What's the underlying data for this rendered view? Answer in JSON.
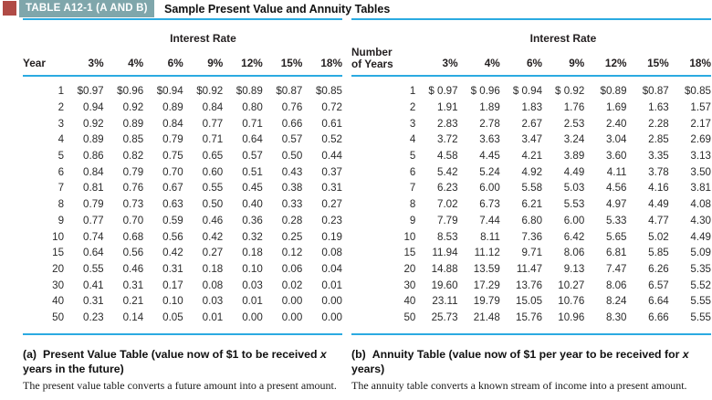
{
  "header": {
    "tag": "TABLE A12-1 (A AND B)",
    "title": "Sample Present Value and Annuity Tables"
  },
  "colors": {
    "rule_blue": "#2baae1",
    "tag_teal": "#7fa6ab",
    "accent_red": "#b04b46"
  },
  "tables": {
    "present_value": {
      "group_header": "Interest Rate",
      "row_header": "Year",
      "columns": [
        "3%",
        "4%",
        "6%",
        "9%",
        "12%",
        "15%",
        "18%"
      ],
      "rows": [
        {
          "label": "1",
          "values": [
            "$0.97",
            "$0.96",
            "$0.94",
            "$0.92",
            "$0.89",
            "$0.87",
            "$0.85"
          ]
        },
        {
          "label": "2",
          "values": [
            "0.94",
            "0.92",
            "0.89",
            "0.84",
            "0.80",
            "0.76",
            "0.72"
          ]
        },
        {
          "label": "3",
          "values": [
            "0.92",
            "0.89",
            "0.84",
            "0.77",
            "0.71",
            "0.66",
            "0.61"
          ]
        },
        {
          "label": "4",
          "values": [
            "0.89",
            "0.85",
            "0.79",
            "0.71",
            "0.64",
            "0.57",
            "0.52"
          ]
        },
        {
          "label": "5",
          "values": [
            "0.86",
            "0.82",
            "0.75",
            "0.65",
            "0.57",
            "0.50",
            "0.44"
          ]
        },
        {
          "label": "6",
          "values": [
            "0.84",
            "0.79",
            "0.70",
            "0.60",
            "0.51",
            "0.43",
            "0.37"
          ]
        },
        {
          "label": "7",
          "values": [
            "0.81",
            "0.76",
            "0.67",
            "0.55",
            "0.45",
            "0.38",
            "0.31"
          ]
        },
        {
          "label": "8",
          "values": [
            "0.79",
            "0.73",
            "0.63",
            "0.50",
            "0.40",
            "0.33",
            "0.27"
          ]
        },
        {
          "label": "9",
          "values": [
            "0.77",
            "0.70",
            "0.59",
            "0.46",
            "0.36",
            "0.28",
            "0.23"
          ]
        },
        {
          "label": "10",
          "values": [
            "0.74",
            "0.68",
            "0.56",
            "0.42",
            "0.32",
            "0.25",
            "0.19"
          ]
        },
        {
          "label": "15",
          "values": [
            "0.64",
            "0.56",
            "0.42",
            "0.27",
            "0.18",
            "0.12",
            "0.08"
          ]
        },
        {
          "label": "20",
          "values": [
            "0.55",
            "0.46",
            "0.31",
            "0.18",
            "0.10",
            "0.06",
            "0.04"
          ]
        },
        {
          "label": "30",
          "values": [
            "0.41",
            "0.31",
            "0.17",
            "0.08",
            "0.03",
            "0.02",
            "0.01"
          ]
        },
        {
          "label": "40",
          "values": [
            "0.31",
            "0.21",
            "0.10",
            "0.03",
            "0.01",
            "0.00",
            "0.00"
          ]
        },
        {
          "label": "50",
          "values": [
            "0.23",
            "0.14",
            "0.05",
            "0.01",
            "0.00",
            "0.00",
            "0.00"
          ]
        }
      ]
    },
    "annuity": {
      "group_header": "Interest Rate",
      "row_header_line1": "Number",
      "row_header_line2": "of Years",
      "columns": [
        "3%",
        "4%",
        "6%",
        "9%",
        "12%",
        "15%",
        "18%"
      ],
      "rows": [
        {
          "label": "1",
          "values": [
            "$ 0.97",
            "$ 0.96",
            "$ 0.94",
            "$ 0.92",
            "$0.89",
            "$0.87",
            "$0.85"
          ]
        },
        {
          "label": "2",
          "values": [
            "1.91",
            "1.89",
            "1.83",
            "1.76",
            "1.69",
            "1.63",
            "1.57"
          ]
        },
        {
          "label": "3",
          "values": [
            "2.83",
            "2.78",
            "2.67",
            "2.53",
            "2.40",
            "2.28",
            "2.17"
          ]
        },
        {
          "label": "4",
          "values": [
            "3.72",
            "3.63",
            "3.47",
            "3.24",
            "3.04",
            "2.85",
            "2.69"
          ]
        },
        {
          "label": "5",
          "values": [
            "4.58",
            "4.45",
            "4.21",
            "3.89",
            "3.60",
            "3.35",
            "3.13"
          ]
        },
        {
          "label": "6",
          "values": [
            "5.42",
            "5.24",
            "4.92",
            "4.49",
            "4.11",
            "3.78",
            "3.50"
          ]
        },
        {
          "label": "7",
          "values": [
            "6.23",
            "6.00",
            "5.58",
            "5.03",
            "4.56",
            "4.16",
            "3.81"
          ]
        },
        {
          "label": "8",
          "values": [
            "7.02",
            "6.73",
            "6.21",
            "5.53",
            "4.97",
            "4.49",
            "4.08"
          ]
        },
        {
          "label": "9",
          "values": [
            "7.79",
            "7.44",
            "6.80",
            "6.00",
            "5.33",
            "4.77",
            "4.30"
          ]
        },
        {
          "label": "10",
          "values": [
            "8.53",
            "8.11",
            "7.36",
            "6.42",
            "5.65",
            "5.02",
            "4.49"
          ]
        },
        {
          "label": "15",
          "values": [
            "11.94",
            "11.12",
            "9.71",
            "8.06",
            "6.81",
            "5.85",
            "5.09"
          ]
        },
        {
          "label": "20",
          "values": [
            "14.88",
            "13.59",
            "11.47",
            "9.13",
            "7.47",
            "6.26",
            "5.35"
          ]
        },
        {
          "label": "30",
          "values": [
            "19.60",
            "17.29",
            "13.76",
            "10.27",
            "8.06",
            "6.57",
            "5.52"
          ]
        },
        {
          "label": "40",
          "values": [
            "23.11",
            "19.79",
            "15.05",
            "10.76",
            "8.24",
            "6.64",
            "5.55"
          ]
        },
        {
          "label": "50",
          "values": [
            "25.73",
            "21.48",
            "15.76",
            "10.96",
            "8.30",
            "6.66",
            "5.55"
          ]
        }
      ]
    }
  },
  "footnotes": {
    "a": {
      "label": "(a)",
      "text_before_x": "Present Value Table (value now of $1 to be received ",
      "x": "x",
      "text_after_x": " years in the future)",
      "body": "The present value table converts a future amount into a present amount."
    },
    "b": {
      "label": "(b)",
      "text_before_x": "Annuity Table (value now of $1 per year to be received for ",
      "x": "x",
      "text_after_x": " years)",
      "body": "The annuity table converts a known stream of income into a present amount."
    }
  }
}
